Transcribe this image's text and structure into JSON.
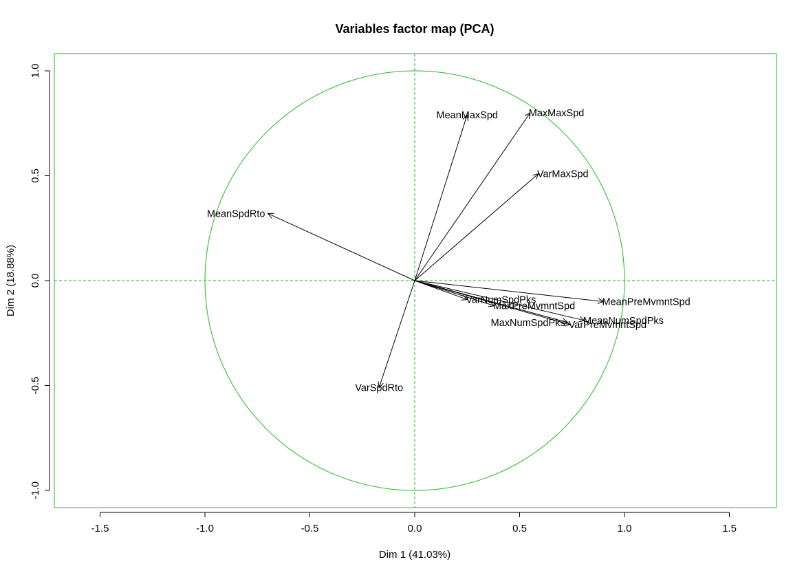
{
  "chart_data": {
    "type": "scatter",
    "title": "Variables factor map (PCA)",
    "xlabel": "Dim 1 (41.03%)",
    "ylabel": "Dim 2 (18.88%)",
    "xlim": [
      -1.72,
      1.72
    ],
    "ylim": [
      -1.08,
      1.08
    ],
    "xticks": [
      "-1.5",
      "-1.0",
      "-0.5",
      "0.0",
      "0.5",
      "1.0",
      "1.5"
    ],
    "yticks": [
      "-1.0",
      "-0.5",
      "0.0",
      "0.5",
      "1.0"
    ],
    "xtick_values": [
      -1.5,
      -1.0,
      -0.5,
      0.0,
      0.5,
      1.0,
      1.5
    ],
    "ytick_values": [
      -1.0,
      -0.5,
      0.0,
      0.5,
      1.0
    ],
    "grid": false,
    "correlation_circle": {
      "radius": 1.0,
      "color": "#1fb91f"
    },
    "reference_lines": {
      "x": 0,
      "y": 0,
      "style": "dashed",
      "color": "#1fb91f"
    },
    "frame_color": "#1fb91f",
    "arrow_color": "#000000",
    "variables": [
      {
        "name": "MeanMaxSpd",
        "x": 0.25,
        "y": 0.79,
        "label_anchor": "middle"
      },
      {
        "name": "MaxMaxSpd",
        "x": 0.55,
        "y": 0.8,
        "label_anchor": "start"
      },
      {
        "name": "VarMaxSpd",
        "x": 0.59,
        "y": 0.51,
        "label_anchor": "start"
      },
      {
        "name": "MeanSpdRto",
        "x": -0.7,
        "y": 0.32,
        "label_anchor": "end"
      },
      {
        "name": "MeanPreMvmntSpd",
        "x": 0.9,
        "y": -0.1,
        "label_anchor": "start"
      },
      {
        "name": "MeanNumSpdPks",
        "x": 0.81,
        "y": -0.19,
        "label_anchor": "start"
      },
      {
        "name": "VarPreMvmntSpd",
        "x": 0.74,
        "y": -0.21,
        "label_anchor": "start"
      },
      {
        "name": "MaxNumSpdPks",
        "x": 0.73,
        "y": -0.2,
        "label_anchor": "end"
      },
      {
        "name": "MaxPreMvmntSpd",
        "x": 0.38,
        "y": -0.12,
        "label_anchor": "start"
      },
      {
        "name": "VarNumSpdPks",
        "x": 0.25,
        "y": -0.09,
        "label_anchor": "start"
      },
      {
        "name": "VarSpdRto",
        "x": -0.17,
        "y": -0.51,
        "label_anchor": "middle"
      }
    ]
  }
}
